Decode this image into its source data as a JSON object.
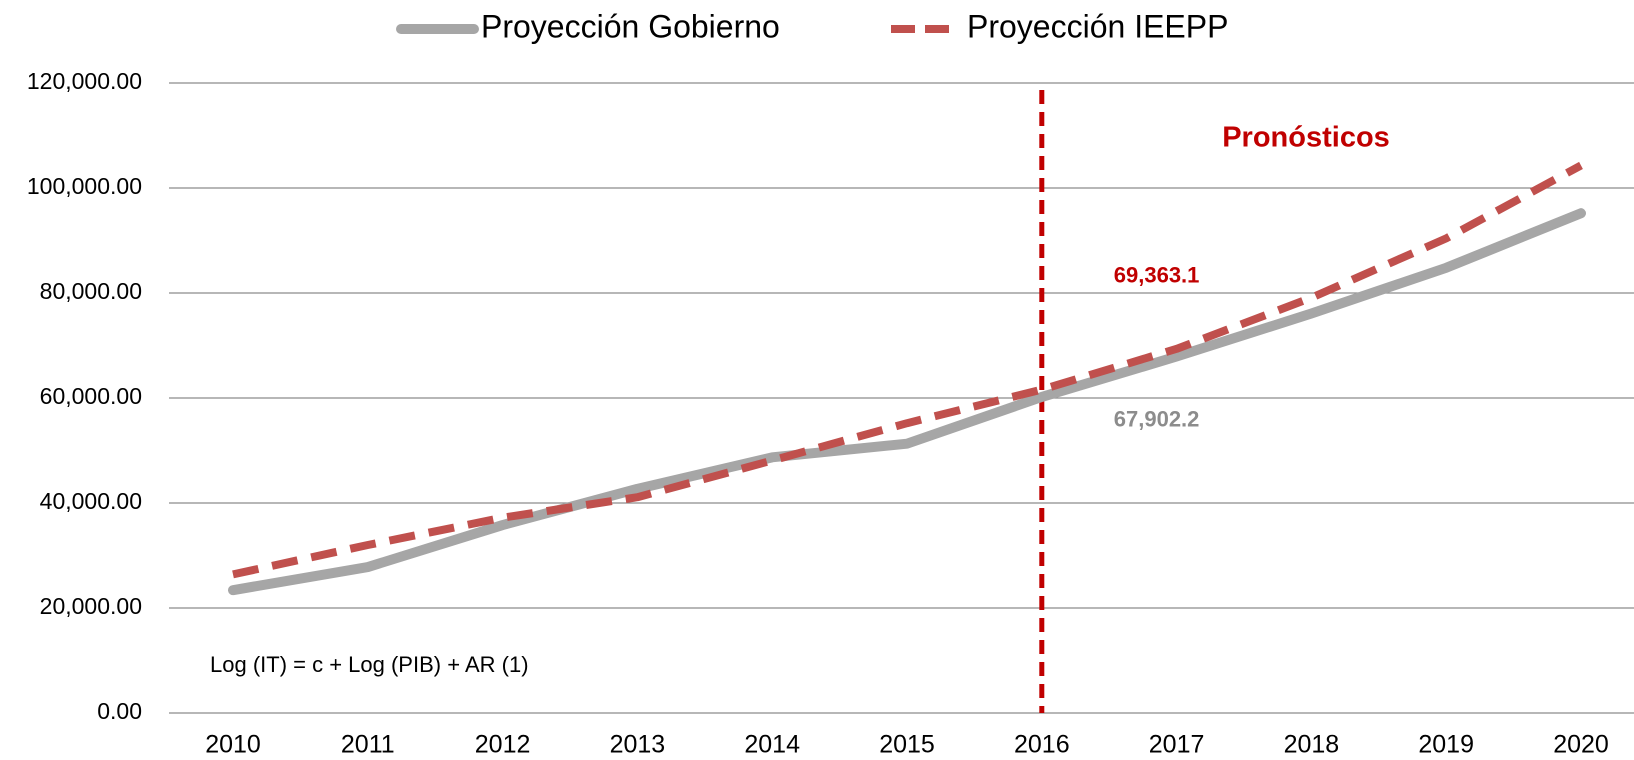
{
  "chart_data": {
    "type": "line",
    "x": [
      2010,
      2011,
      2012,
      2013,
      2014,
      2015,
      2016,
      2017,
      2018,
      2019,
      2020
    ],
    "xticks": [
      2010,
      2011,
      2012,
      2013,
      2014,
      2015,
      2016,
      2017,
      2018,
      2019,
      2020
    ],
    "xlim": [
      2009.45,
      2020.4
    ],
    "ylim": [
      0,
      120000
    ],
    "yticks": [
      {
        "value": 0,
        "label": "0.00"
      },
      {
        "value": 20000,
        "label": "20,000.00"
      },
      {
        "value": 40000,
        "label": "40,000.00"
      },
      {
        "value": 60000,
        "label": "60,000.00"
      },
      {
        "value": 80000,
        "label": "80,000.00"
      },
      {
        "value": 100000,
        "label": "100,000.00"
      },
      {
        "value": 120000,
        "label": "120,000.00"
      }
    ],
    "grid": true,
    "legend": "top",
    "forecast_start": 2016,
    "forecast_label": "Pronósticos",
    "annotation": "Log (IT) = c + Log (PIB) + AR (1)",
    "series": [
      {
        "name": "Proyección Gobierno",
        "color": "#a6a6a6",
        "dash": false,
        "values": [
          23400,
          27800,
          35800,
          42700,
          48700,
          51300,
          60200,
          67902.2,
          76100,
          84800,
          95200
        ],
        "value_labels": [
          null,
          null,
          null,
          null,
          null,
          null,
          null,
          "67,902.2",
          null,
          null,
          null
        ]
      },
      {
        "name": "Proyección IEEPP",
        "color": "#c0504d",
        "dash": true,
        "values": [
          26400,
          32000,
          37200,
          41100,
          48100,
          55200,
          61600,
          69363.1,
          79100,
          90400,
          104300
        ],
        "value_labels": [
          null,
          null,
          null,
          null,
          null,
          null,
          null,
          "69,363.1",
          null,
          null,
          null
        ]
      }
    ]
  }
}
